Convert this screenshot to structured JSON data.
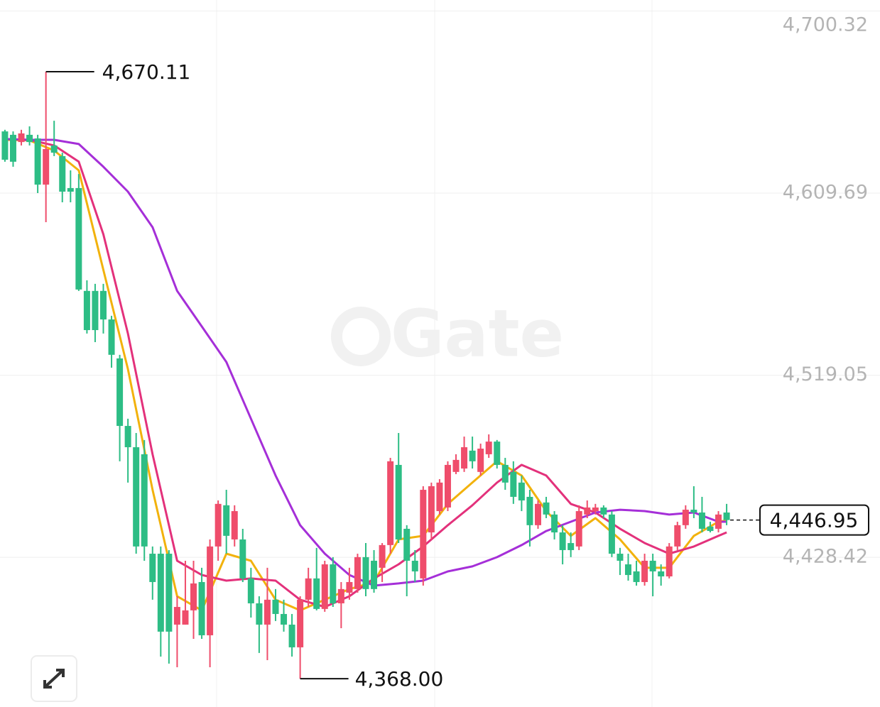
{
  "chart_data": {
    "type": "candlestick",
    "watermark": "Gate",
    "up_color": "#ef4d6b",
    "down_color": "#2dbd85",
    "xlim": [
      -0.6,
      106.7
    ],
    "ylim": [
      4353.9,
      4705.8
    ],
    "yticks": [
      {
        "value": 4428.42,
        "label": "4,428.42"
      },
      {
        "value": 4519.05,
        "label": "4,519.05"
      },
      {
        "value": 4609.69,
        "label": "4,609.69"
      },
      {
        "value": 4700.32,
        "label": "4,700.32"
      }
    ],
    "grid": true,
    "open": [
      4640.4,
      4638.7,
      4635.1,
      4638.7,
      4636.9,
      4613.9,
      4633.4,
      4628.1,
      4612.2,
      4612.2,
      4561.0,
      4561.0,
      4561.0,
      4546.8,
      4527.4,
      4493.8,
      4483.2,
      4479.7,
      4430.2,
      4430.2,
      4430.2,
      4394.9,
      4394.9,
      4402.0,
      4416.1,
      4389.6,
      4433.8,
      4454.3,
      4437.3,
      4437.3,
      4417.9,
      4405.5,
      4394.9,
      4407.3,
      4400.2,
      4394.9,
      4383.6,
      4407.3,
      4417.9,
      4402.7,
      4424.9,
      4405.5,
      4410.8,
      4412.6,
      4428.5,
      4426.7,
      4423.2,
      4434.5,
      4474.4,
      4442.6,
      4426.7,
      4417.9,
      4440.8,
      4451.4,
      4453.2,
      4470.9,
      4472.6,
      4481.5,
      4470.9,
      4479.7,
      4486.0,
      4474.4,
      4470.9,
      4465.6,
      4458.5,
      4444.4,
      4455.7,
      4449.7,
      4440.8,
      4435.5,
      4433.8,
      4449.7,
      4451.4,
      4453.2,
      4449.7,
      4430.2,
      4424.9,
      4421.4,
      4416.1,
      4426.7,
      4421.4,
      4418.9,
      4433.8,
      4444.4,
      4452.1,
      4450.7,
      4443.7,
      4442.6,
      4450.7
    ],
    "high": [
      4641.2,
      4640.4,
      4641.2,
      4642.9,
      4638.7,
      4670.11,
      4645.7,
      4629.8,
      4621.0,
      4619.2,
      4566.3,
      4564.5,
      4564.5,
      4548.6,
      4529.2,
      4497.4,
      4490.3,
      4486.8,
      4433.8,
      4433.8,
      4432.0,
      4409.0,
      4426.7,
      4426.7,
      4423.2,
      4437.3,
      4456.7,
      4462.0,
      4454.3,
      4442.6,
      4423.2,
      4409.0,
      4423.2,
      4412.6,
      4407.3,
      4400.2,
      4409.0,
      4423.2,
      4433.1,
      4426.7,
      4428.5,
      4416.1,
      4423.2,
      4430.2,
      4435.5,
      4432.0,
      4435.5,
      4477.9,
      4490.3,
      4444.4,
      4432.0,
      4463.8,
      4465.6,
      4467.3,
      4476.2,
      4479.7,
      4488.5,
      4488.5,
      4485.0,
      4489.6,
      4486.8,
      4477.9,
      4476.2,
      4469.1,
      4462.0,
      4456.7,
      4458.5,
      4451.4,
      4444.4,
      4440.8,
      4454.3,
      4456.7,
      4455.0,
      4454.3,
      4451.4,
      4433.1,
      4430.2,
      4426.7,
      4430.2,
      4430.2,
      4424.9,
      4435.5,
      4446.1,
      4454.3,
      4463.8,
      4458.5,
      4446.1,
      4451.4,
      4455.0
    ],
    "low": [
      4625.3,
      4622.8,
      4633.4,
      4633.4,
      4609.7,
      4595.2,
      4628.1,
      4605.1,
      4605.1,
      4561.0,
      4539.8,
      4535.5,
      4539.8,
      4522.8,
      4476.2,
      4465.6,
      4430.2,
      4426.7,
      4407.3,
      4379.0,
      4375.5,
      4373.7,
      4394.9,
      4387.8,
      4387.8,
      4373.7,
      4426.7,
      4430.2,
      4433.8,
      4416.1,
      4398.4,
      4380.8,
      4377.2,
      4396.7,
      4391.4,
      4379.0,
      4368,
      4403.7,
      4402.0,
      4401.3,
      4403.7,
      4393.1,
      4407.3,
      4410.8,
      4409.0,
      4410.8,
      4416.1,
      4430.2,
      4435.5,
      4409.0,
      4416.1,
      4414.3,
      4437.3,
      4449.7,
      4451.4,
      4469.8,
      4470.9,
      4472.6,
      4469.1,
      4477.9,
      4472.6,
      4462.0,
      4455.0,
      4451.4,
      4433.8,
      4442.6,
      4447.9,
      4437.3,
      4424.9,
      4428.5,
      4432.0,
      4447.9,
      4449.7,
      4447.9,
      4428.5,
      4419.6,
      4416.8,
      4414.3,
      4414.3,
      4409.0,
      4414.3,
      4417.9,
      4432.0,
      4442.6,
      4447.9,
      4440.8,
      4440.8,
      4440.8,
      4444.4
    ],
    "close": [
      4626.3,
      4625.3,
      4639.4,
      4635.1,
      4613.9,
      4631.6,
      4629.8,
      4610.4,
      4610.4,
      4561.7,
      4541.5,
      4541.5,
      4546.8,
      4529.2,
      4493.8,
      4483.2,
      4433.8,
      4433.8,
      4416.1,
      4391.4,
      4391.4,
      4403.7,
      4402.0,
      4415.4,
      4389.6,
      4433.8,
      4455.0,
      4439.1,
      4451.4,
      4417.9,
      4405.5,
      4394.9,
      4407.3,
      4400.2,
      4394.9,
      4383.6,
      4407.3,
      4417.9,
      4402.7,
      4424.9,
      4405.5,
      4412.6,
      4416.1,
      4428.5,
      4412.6,
      4412.6,
      4434.5,
      4476.2,
      4437.3,
      4426.7,
      4421.4,
      4462.0,
      4463.8,
      4465.6,
      4474.4,
      4476.9,
      4483.2,
      4476.2,
      4482.5,
      4486.0,
      4474.4,
      4465.6,
      4458.5,
      4456.7,
      4444.4,
      4455.0,
      4449.7,
      4440.8,
      4432.0,
      4432.0,
      4451.4,
      4453.2,
      4453.2,
      4449.7,
      4430.2,
      4426.7,
      4419.6,
      4416.1,
      4426.7,
      4421.4,
      4418.9,
      4433.8,
      4444.4,
      4452.1,
      4450.7,
      4442.6,
      4441.5,
      4449.7,
      4446.95
    ],
    "high_label": "4,670.11",
    "low_label": "4,368.00",
    "last_label": "4,446.95",
    "series": [
      {
        "color": "#f2b20c",
        "x": [
          0,
          3,
          6,
          9,
          12,
          15,
          18,
          21,
          24,
          27,
          30,
          33,
          36,
          39,
          42,
          45,
          48,
          51,
          54,
          57,
          60,
          63,
          66,
          69,
          72,
          75,
          78,
          81,
          84,
          87,
          88
        ],
        "values": [
          4636.2,
          4635.9,
          4630.9,
          4621.0,
          4571.5,
          4522.1,
          4462.0,
          4409.0,
          4402.0,
          4430.2,
          4426.7,
          4407.3,
          4402.0,
          4407.3,
          4412.6,
          4416.1,
          4437.3,
          4439.1,
          4455.0,
          4465.6,
          4476.2,
          4469.1,
          4451.4,
          4439.1,
          4447.9,
          4437.3,
          4423.2,
          4423.2,
          4439.1,
          4446.1,
          4446.8
        ]
      },
      {
        "color": "#e3317b",
        "x": [
          0,
          3,
          6,
          9,
          12,
          15,
          18,
          21,
          24,
          27,
          30,
          33,
          36,
          39,
          42,
          45,
          48,
          51,
          54,
          57,
          60,
          63,
          66,
          69,
          72,
          75,
          78,
          81,
          84,
          87,
          88
        ],
        "values": [
          4636.6,
          4636.2,
          4633.4,
          4625.3,
          4589.2,
          4539.8,
          4479.7,
          4426.7,
          4419.6,
          4416.8,
          4417.9,
          4416.8,
          4407.3,
          4403.7,
          4409.0,
          4417.9,
          4424.9,
          4433.8,
          4444.4,
          4454.3,
          4465.6,
          4474.4,
          4469.1,
          4455.0,
          4450.7,
          4442.6,
          4435.5,
          4430.2,
          4433.8,
          4439.1,
          4440.8
        ]
      },
      {
        "color": "#a52fd8",
        "x": [
          0,
          3,
          6,
          9,
          12,
          15,
          18,
          21,
          24,
          27,
          30,
          33,
          36,
          39,
          42,
          45,
          48,
          51,
          54,
          57,
          60,
          63,
          66,
          69,
          72,
          75,
          78,
          81,
          84,
          87,
          88
        ],
        "values": [
          4636.6,
          4636.2,
          4636.2,
          4634.1,
          4622.8,
          4610.4,
          4592.7,
          4561.0,
          4543.3,
          4525.6,
          4497.4,
          4469.1,
          4444.4,
          4430.2,
          4419.6,
          4414.3,
          4415.4,
          4416.8,
          4421.4,
          4423.9,
          4428.5,
          4434.5,
          4441.5,
          4446.1,
          4450.7,
          4452.1,
          4451.4,
          4449.7,
          4450.7,
          4446.1,
          4446.1
        ]
      }
    ]
  }
}
